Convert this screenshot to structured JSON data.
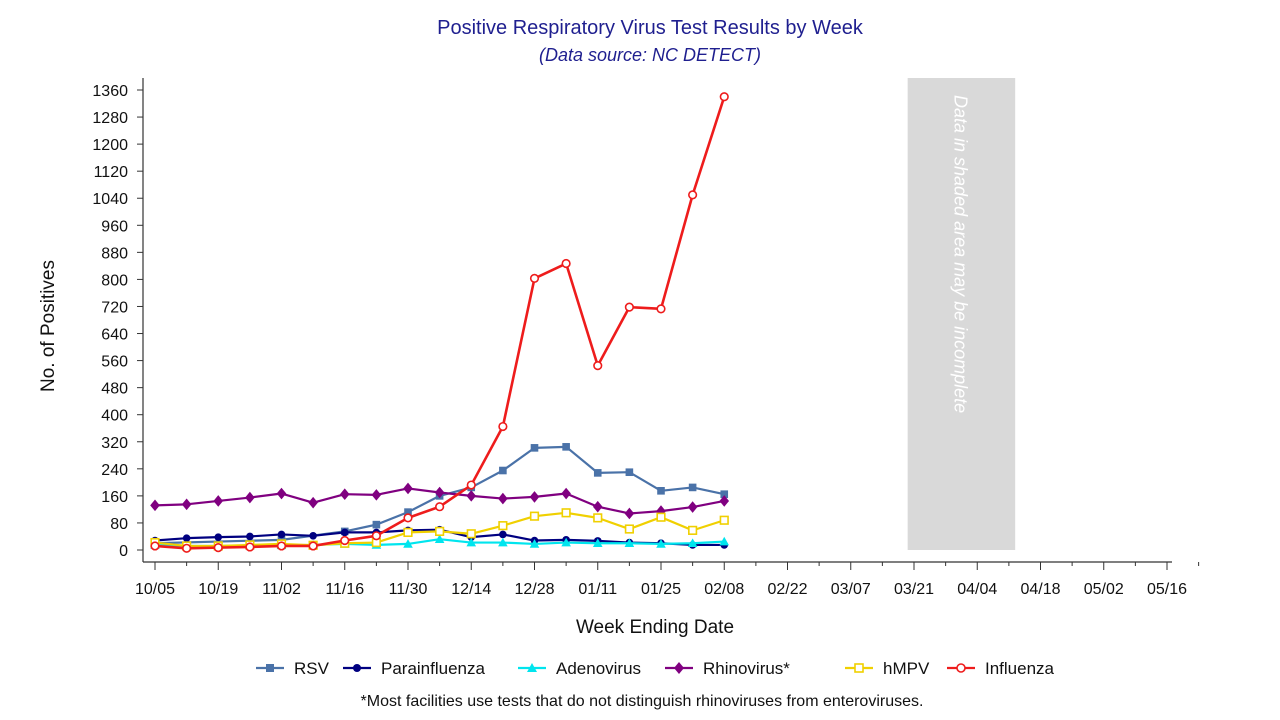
{
  "chart_data": {
    "type": "line",
    "title": "Positive Respiratory Virus Test Results by Week",
    "subtitle": "(Data source: NC DETECT)",
    "xlabel": "Week Ending Date",
    "ylabel": "No. of Positives",
    "ylim": [
      0,
      1360
    ],
    "yticks": [
      0,
      80,
      160,
      240,
      320,
      400,
      480,
      560,
      640,
      720,
      800,
      880,
      960,
      1040,
      1120,
      1200,
      1280,
      1360
    ],
    "x_tick_labels": [
      "10/05",
      "10/19",
      "11/02",
      "11/16",
      "11/30",
      "12/14",
      "12/28",
      "01/11",
      "01/25",
      "02/08",
      "02/22",
      "03/07",
      "03/21",
      "04/04",
      "04/18",
      "05/02",
      "05/16"
    ],
    "x_weeks_total": 33,
    "shaded_region": {
      "from_week": 23.8,
      "to_week": 27.2,
      "note": "Data in shaded area may be incomplete",
      "color": "#d9d9d9"
    },
    "grid": false,
    "legend_position": "bottom",
    "footnote": "*Most facilities use tests that do not distinguish rhinoviruses from enteroviruses.",
    "series": [
      {
        "name": "RSV",
        "color": "#4a72a8",
        "marker": "square",
        "values": [
          20,
          null,
          null,
          null,
          30,
          null,
          55,
          75,
          112,
          160,
          185,
          235,
          302,
          305,
          228,
          230,
          175,
          185,
          165
        ]
      },
      {
        "name": "Parainfluenza",
        "color": "#000080",
        "marker": "circle",
        "values": [
          28,
          35,
          38,
          40,
          46,
          42,
          52,
          52,
          58,
          60,
          38,
          46,
          28,
          30,
          27,
          22,
          20,
          15,
          15
        ]
      },
      {
        "name": "Adenovirus",
        "color": "#00e5ee",
        "marker": "triangle",
        "values": [
          15,
          12,
          12,
          13,
          14,
          15,
          18,
          15,
          18,
          32,
          22,
          22,
          18,
          22,
          20,
          20,
          18,
          20,
          25
        ]
      },
      {
        "name": "Rhinovirus*",
        "color": "#800080",
        "marker": "diamond",
        "values": [
          132,
          135,
          145,
          155,
          167,
          140,
          165,
          163,
          182,
          170,
          160,
          152,
          157,
          167,
          128,
          108,
          115,
          127,
          145
        ]
      },
      {
        "name": "hMPV",
        "color": "#f0d000",
        "marker": "open-square",
        "values": [
          22,
          12,
          12,
          15,
          18,
          14,
          20,
          22,
          52,
          55,
          48,
          72,
          100,
          110,
          95,
          62,
          97,
          58,
          88
        ]
      },
      {
        "name": "Influenza",
        "color": "#ee1c1c",
        "marker": "open-circle",
        "values": [
          12,
          5,
          7,
          9,
          12,
          12,
          28,
          42,
          95,
          128,
          192,
          365,
          803,
          847,
          545,
          718,
          713,
          1050,
          1340
        ]
      }
    ]
  }
}
